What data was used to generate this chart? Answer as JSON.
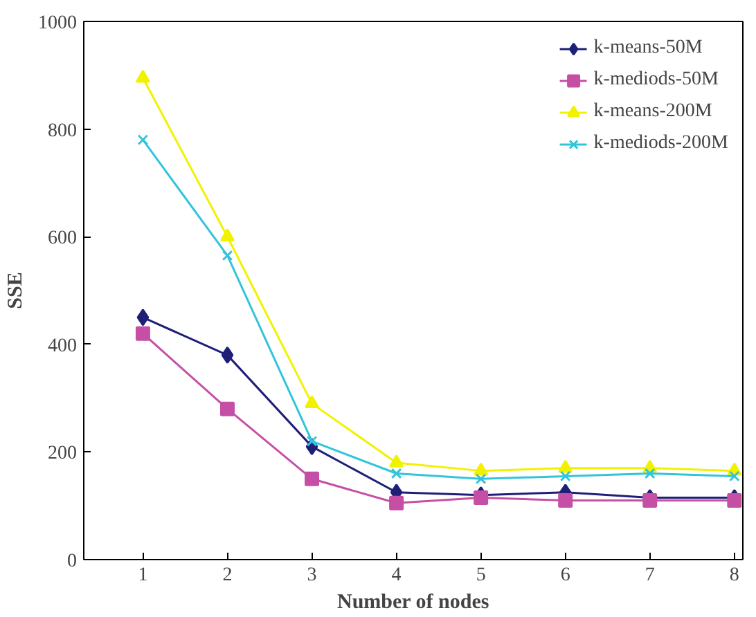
{
  "chart_data": {
    "type": "line",
    "xlabel": "Number of nodes",
    "ylabel": "SSE",
    "categories": [
      "1",
      "2",
      "3",
      "4",
      "5",
      "6",
      "7",
      "8"
    ],
    "ylim": [
      0,
      1000
    ],
    "yticks": [
      0,
      200,
      400,
      600,
      800,
      1000
    ],
    "grid": false,
    "legend": "top right",
    "series": [
      {
        "name": "k-means-50M",
        "color": "#1f1f78",
        "marker": "diamond",
        "values": [
          450,
          380,
          210,
          125,
          120,
          125,
          115,
          115
        ]
      },
      {
        "name": "k-mediods-50M",
        "color": "#c64fa6",
        "marker": "square",
        "values": [
          420,
          280,
          150,
          105,
          115,
          110,
          110,
          110
        ]
      },
      {
        "name": "k-means-200M",
        "color": "#f2f200",
        "marker": "triangle",
        "values": [
          895,
          600,
          290,
          180,
          165,
          170,
          170,
          165
        ]
      },
      {
        "name": "k-mediods-200M",
        "color": "#33c4dc",
        "marker": "cross",
        "values": [
          780,
          565,
          220,
          160,
          150,
          155,
          160,
          155
        ]
      }
    ]
  }
}
